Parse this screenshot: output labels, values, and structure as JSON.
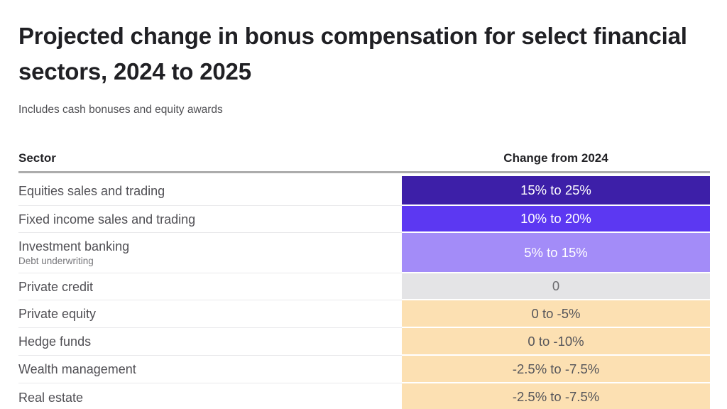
{
  "header": {
    "title": "Projected change in bonus compensation for select financial sectors, 2024 to 2025",
    "subtitle": "Includes cash bonuses and equity awards"
  },
  "table": {
    "columns": {
      "sector": "Sector",
      "change": "Change from 2024"
    },
    "rows": [
      {
        "sector": "Equities sales and trading",
        "sublabel": "",
        "value": "15% to 25%",
        "cell_bg": "#3d1fa8",
        "cell_text": "#ffffff",
        "height": 42
      },
      {
        "sector": "Fixed income sales and trading",
        "sublabel": "",
        "value": "10% to 20%",
        "cell_bg": "#5c38f2",
        "cell_text": "#ffffff",
        "height": 38
      },
      {
        "sector": "Investment banking",
        "sublabel": "Debt underwriting",
        "value": "5% to 15%",
        "cell_bg": "#a38cf8",
        "cell_text": "#ffffff",
        "height": 57
      },
      {
        "sector": "Private credit",
        "sublabel": "",
        "value": "0",
        "cell_bg": "#e4e4e6",
        "cell_text": "#6b6b6e",
        "height": 38
      },
      {
        "sector": "Private equity",
        "sublabel": "",
        "value": "0 to -5%",
        "cell_bg": "#fce0b2",
        "cell_text": "#55555a",
        "height": 39
      },
      {
        "sector": "Hedge funds",
        "sublabel": "",
        "value": "0 to -10%",
        "cell_bg": "#fce0b2",
        "cell_text": "#55555a",
        "height": 39
      },
      {
        "sector": "Wealth management",
        "sublabel": "",
        "value": "-2.5% to -7.5%",
        "cell_bg": "#fce0b2",
        "cell_text": "#55555a",
        "height": 39
      },
      {
        "sector": "Real estate",
        "sublabel": "",
        "value": "-2.5% to -7.5%",
        "cell_bg": "#fce0b2",
        "cell_text": "#55555a",
        "height": 40
      }
    ]
  },
  "colors": {
    "strong_positive": "#3d1fa8",
    "positive": "#5c38f2",
    "mild_positive": "#a38cf8",
    "neutral": "#e4e4e6",
    "negative": "#fce0b2",
    "header_rule": "#acacac"
  },
  "chart_data": {
    "type": "table",
    "title": "Projected change in bonus compensation for select financial sectors, 2024 to 2025",
    "subtitle": "Includes cash bonuses and equity awards",
    "columns": [
      "Sector",
      "Change from 2024"
    ],
    "rows": [
      [
        "Equities sales and trading",
        "15% to 25%"
      ],
      [
        "Fixed income sales and trading",
        "10% to 20%"
      ],
      [
        "Investment banking (Debt underwriting)",
        "5% to 15%"
      ],
      [
        "Private credit",
        "0"
      ],
      [
        "Private equity",
        "0 to -5%"
      ],
      [
        "Hedge funds",
        "0 to -10%"
      ],
      [
        "Wealth management",
        "-2.5% to -7.5%"
      ],
      [
        "Real estate",
        "-2.5% to -7.5%"
      ]
    ],
    "value_ranges_pct": [
      [
        15,
        25
      ],
      [
        10,
        20
      ],
      [
        5,
        15
      ],
      [
        0,
        0
      ],
      [
        -5,
        0
      ],
      [
        -10,
        0
      ],
      [
        -7.5,
        -2.5
      ],
      [
        -7.5,
        -2.5
      ]
    ],
    "layout_hints": {
      "value_column": "color-coded cells, purple = positive, gray = flat, peach = negative",
      "grid": "horizontal row separators only"
    }
  }
}
